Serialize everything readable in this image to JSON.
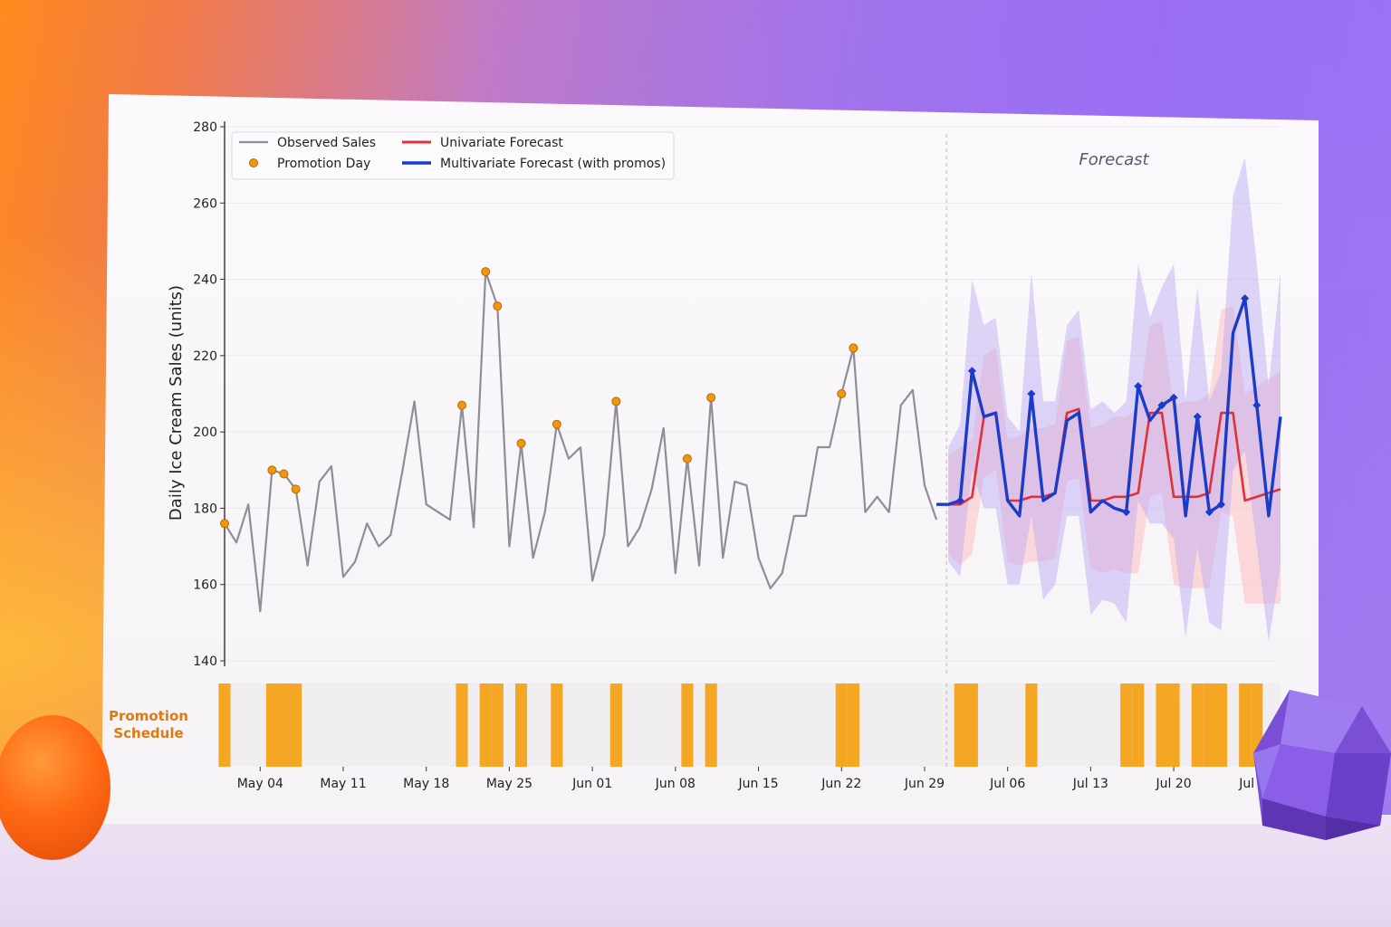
{
  "chart_data": {
    "type": "line",
    "ylabel": "Daily Ice Cream Sales (units)",
    "ylim": [
      140,
      280
    ],
    "yticks": [
      140,
      160,
      180,
      200,
      220,
      240,
      260,
      280
    ],
    "xticks": [
      "May 04",
      "May 11",
      "May 18",
      "May 25",
      "Jun 01",
      "Jun 08",
      "Jun 15",
      "Jun 22",
      "Jun 29",
      "Jul 06",
      "Jul 13",
      "Jul 20",
      "Jul 27"
    ],
    "annotation": "Forecast",
    "promotion_axis_label": "Promotion Schedule",
    "legend": [
      "Observed Sales",
      "Promotion Day",
      "Univariate Forecast",
      "Multivariate Forecast (with promos)"
    ],
    "x_start": "2024-05-01",
    "observed": [
      176,
      171,
      181,
      153,
      190,
      189,
      185,
      165,
      187,
      191,
      162,
      166,
      176,
      170,
      173,
      190,
      208,
      181,
      179,
      177,
      207,
      175,
      242,
      233,
      170,
      197,
      167,
      179,
      202,
      193,
      196,
      161,
      173,
      208,
      170,
      175,
      185,
      201,
      163,
      193,
      165,
      209,
      167,
      187,
      186,
      167,
      159,
      163,
      178,
      178,
      196,
      196,
      210,
      222,
      179,
      183,
      179,
      207,
      211,
      186,
      177
    ],
    "promo_observed": [
      0,
      4,
      5,
      6,
      20,
      22,
      23,
      25,
      28,
      33,
      39,
      41,
      52,
      53
    ],
    "forecast_x": [
      61,
      62,
      63,
      64,
      65,
      66,
      67,
      68,
      69,
      70,
      71,
      72,
      73,
      74,
      75,
      76,
      77,
      78,
      79,
      80,
      81,
      82,
      83,
      84,
      85,
      86,
      87,
      88,
      89
    ],
    "univariate": [
      181,
      181,
      183,
      204,
      205,
      182,
      182,
      183,
      183,
      184,
      205,
      206,
      182,
      182,
      183,
      183,
      184,
      205,
      205,
      183,
      183,
      183,
      184,
      205,
      205,
      182,
      183,
      184,
      185
    ],
    "multivariate": [
      181,
      182,
      216,
      204,
      205,
      182,
      178,
      210,
      182,
      184,
      203,
      205,
      179,
      182,
      180,
      179,
      212,
      203,
      207,
      209,
      178,
      204,
      179,
      181,
      226,
      235,
      207,
      178,
      204
    ],
    "uni_band_lower": [
      168,
      165,
      168,
      188,
      190,
      166,
      165,
      166,
      166,
      167,
      187,
      188,
      164,
      163,
      164,
      163,
      163,
      183,
      184,
      160,
      159,
      159,
      159,
      179,
      178,
      155,
      155,
      155,
      155
    ],
    "uni_band_upper": [
      194,
      196,
      198,
      220,
      222,
      198,
      199,
      201,
      201,
      202,
      224,
      225,
      201,
      202,
      204,
      204,
      206,
      228,
      229,
      207,
      208,
      208,
      210,
      232,
      233,
      210,
      212,
      214,
      216
    ],
    "multi_band_lower": [
      166,
      162,
      190,
      180,
      180,
      160,
      160,
      178,
      156,
      160,
      178,
      178,
      152,
      156,
      155,
      150,
      182,
      176,
      176,
      172,
      146,
      170,
      150,
      148,
      190,
      195,
      170,
      145,
      165
    ],
    "multi_band_upper": [
      196,
      202,
      240,
      228,
      230,
      204,
      200,
      242,
      208,
      208,
      228,
      232,
      206,
      208,
      205,
      208,
      244,
      230,
      238,
      244,
      208,
      238,
      208,
      216,
      262,
      272,
      244,
      212,
      242
    ],
    "promo_forecast": [
      62,
      63,
      68,
      76,
      77,
      79,
      80,
      82,
      83,
      84,
      86,
      87
    ]
  },
  "colors": {
    "observed": "#8e8e96",
    "promo_marker": "#f0960f",
    "univariate": "#de3238",
    "multivariate": "#1a3cc8",
    "uni_band": "#ffb3b6",
    "multi_band": "#b9a6f3",
    "promo_bar": "#f5a623",
    "promo_label": "#e07a10"
  }
}
